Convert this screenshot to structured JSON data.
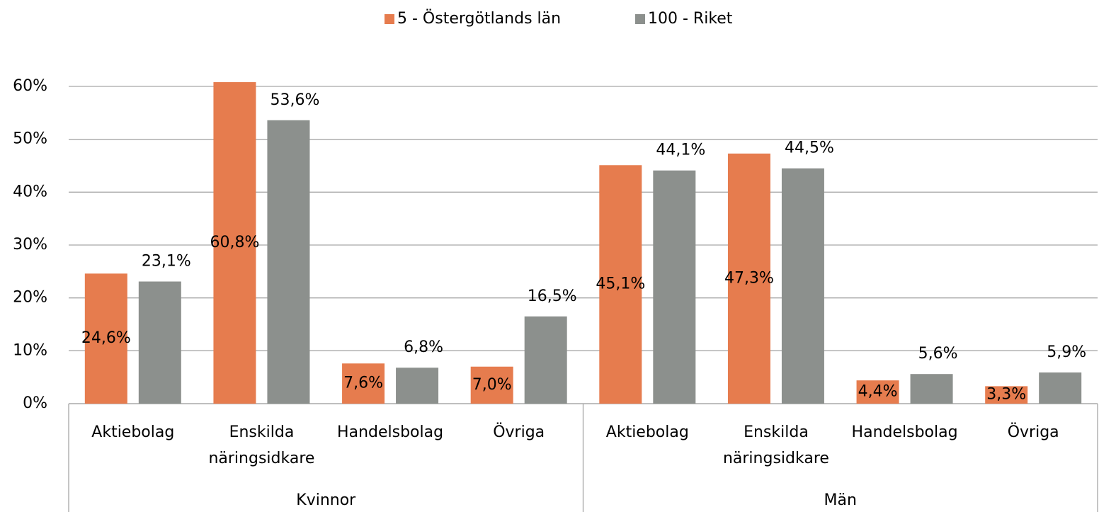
{
  "chart_data": {
    "type": "bar",
    "categories": [
      "Aktiebolag",
      "Enskilda näringsidkare",
      "Handelsbolag",
      "Övriga",
      "Aktiebolag",
      "Enskilda näringsidkare",
      "Handelsbolag",
      "Övriga"
    ],
    "groups": [
      "Kvinnor",
      "Män"
    ],
    "series": [
      {
        "name": "5 - Östergötlands län",
        "color": "#e67c4e",
        "values": [
          24.6,
          60.8,
          7.6,
          7.0,
          45.1,
          47.3,
          4.4,
          3.3
        ],
        "value_labels": [
          "24,6%",
          "60,8%",
          "7,6%",
          "7,0%",
          "45,1%",
          "47,3%",
          "4,4%",
          "3,3%"
        ]
      },
      {
        "name": "100 - Riket",
        "color": "#8c908d",
        "values": [
          23.1,
          53.6,
          6.8,
          16.5,
          44.1,
          44.5,
          5.6,
          5.9
        ],
        "value_labels": [
          "23,1%",
          "53,6%",
          "6,8%",
          "16,5%",
          "44,1%",
          "44,5%",
          "5,6%",
          "5,9%"
        ]
      }
    ],
    "ylim": [
      0,
      60
    ],
    "yticks": [
      {
        "value": 0,
        "label": "0%"
      },
      {
        "value": 10,
        "label": "10%"
      },
      {
        "value": 20,
        "label": "20%"
      },
      {
        "value": 30,
        "label": "30%"
      },
      {
        "value": 40,
        "label": "40%"
      },
      {
        "value": 50,
        "label": "50%"
      },
      {
        "value": 60,
        "label": "60%"
      }
    ],
    "grid": true,
    "legend": "top"
  }
}
